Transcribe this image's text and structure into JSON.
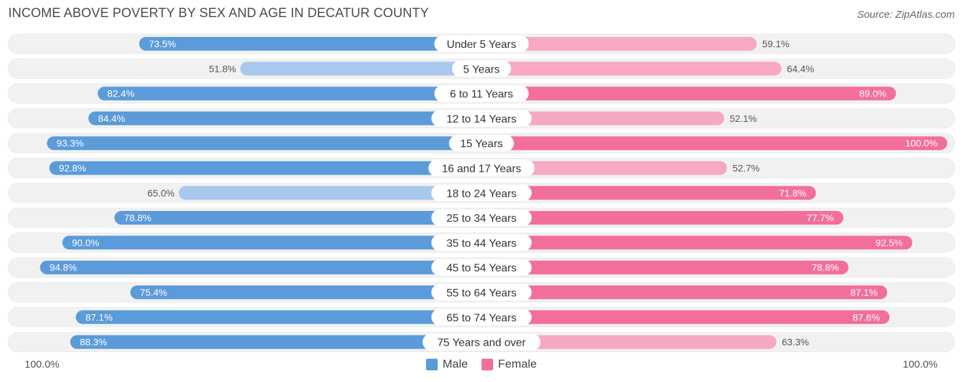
{
  "title": "INCOME ABOVE POVERTY BY SEX AND AGE IN DECATUR COUNTY",
  "source": "Source: ZipAtlas.com",
  "colors": {
    "male_strong": "#5b9bd9",
    "male_light": "#a8c8ec",
    "female_strong": "#f26f9a",
    "female_light": "#f7a8c3",
    "row_bg": "#f1f1f1"
  },
  "chart_data": {
    "type": "bar",
    "orientation": "horizontal-diverging",
    "categories": [
      "Under 5 Years",
      "5 Years",
      "6 to 11 Years",
      "12 to 14 Years",
      "15 Years",
      "16 and 17 Years",
      "18 to 24 Years",
      "25 to 34 Years",
      "35 to 44 Years",
      "45 to 54 Years",
      "55 to 64 Years",
      "65 to 74 Years",
      "75 Years and over"
    ],
    "series": [
      {
        "name": "Male",
        "values": [
          73.5,
          51.8,
          82.4,
          84.4,
          93.3,
          92.8,
          65.0,
          78.8,
          90.0,
          94.8,
          75.4,
          87.1,
          88.3
        ]
      },
      {
        "name": "Female",
        "values": [
          59.1,
          64.4,
          89.0,
          52.1,
          100.0,
          52.7,
          71.8,
          77.7,
          92.5,
          78.8,
          87.1,
          87.6,
          63.3
        ]
      }
    ],
    "xlim": [
      0,
      100
    ],
    "axis_left_label": "100.0%",
    "axis_right_label": "100.0%",
    "legend": [
      "Male",
      "Female"
    ],
    "legend_position": "bottom-center"
  }
}
